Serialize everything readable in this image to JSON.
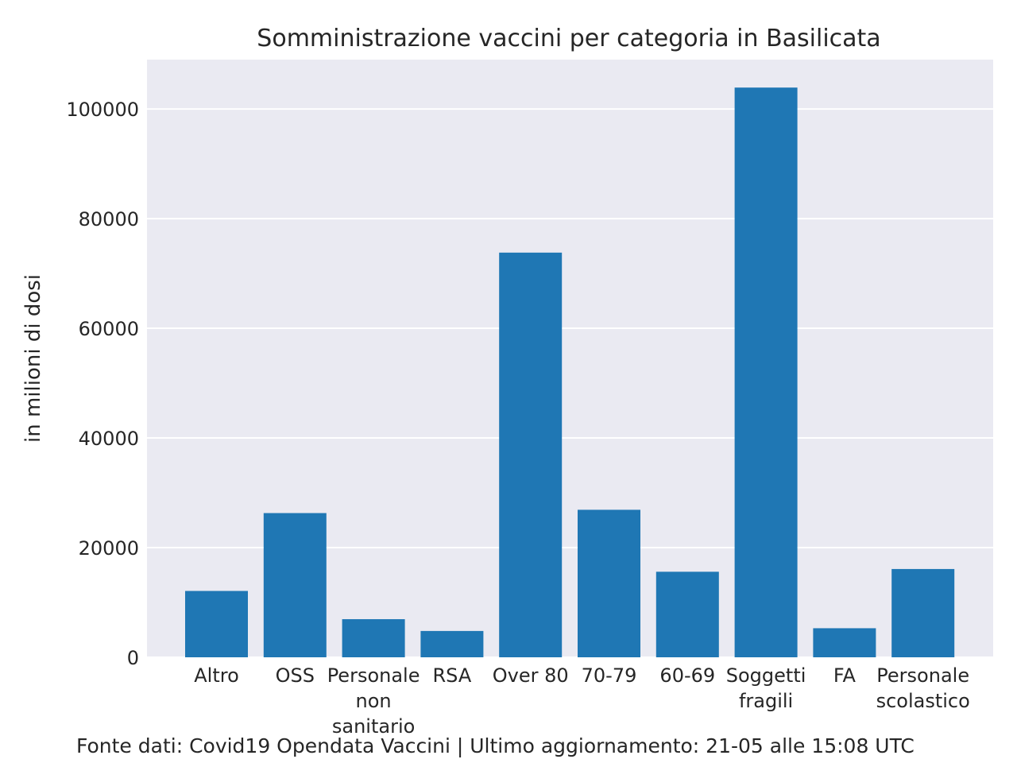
{
  "chart_data": {
    "type": "bar",
    "title": "Somministrazione vaccini per categoria in Basilicata",
    "xlabel": "",
    "ylabel": "in milioni di dosi",
    "categories": [
      [
        "Altro"
      ],
      [
        "OSS"
      ],
      [
        "Personale",
        "non",
        "sanitario"
      ],
      [
        "RSA"
      ],
      [
        "Over 80"
      ],
      [
        "70-79"
      ],
      [
        "60-69"
      ],
      [
        "Soggetti",
        "fragili"
      ],
      [
        "FA"
      ],
      [
        "Personale",
        "scolastico"
      ]
    ],
    "values": [
      12100,
      26300,
      6950,
      4800,
      73800,
      26900,
      15600,
      103900,
      5300,
      16100
    ],
    "ylim": [
      0,
      109000
    ],
    "yticks": [
      0,
      20000,
      40000,
      60000,
      80000,
      100000
    ],
    "ytick_labels": [
      "0",
      "20000",
      "40000",
      "60000",
      "80000",
      "100000"
    ],
    "grid": true,
    "bar_color": "#1f77b4",
    "background_color": "#eaeaf2",
    "grid_color": "#ffffff"
  },
  "footer": "Fonte dati: Covid19 Opendata Vaccini | Ultimo aggiornamento: 21-05 alle 15:08 UTC"
}
